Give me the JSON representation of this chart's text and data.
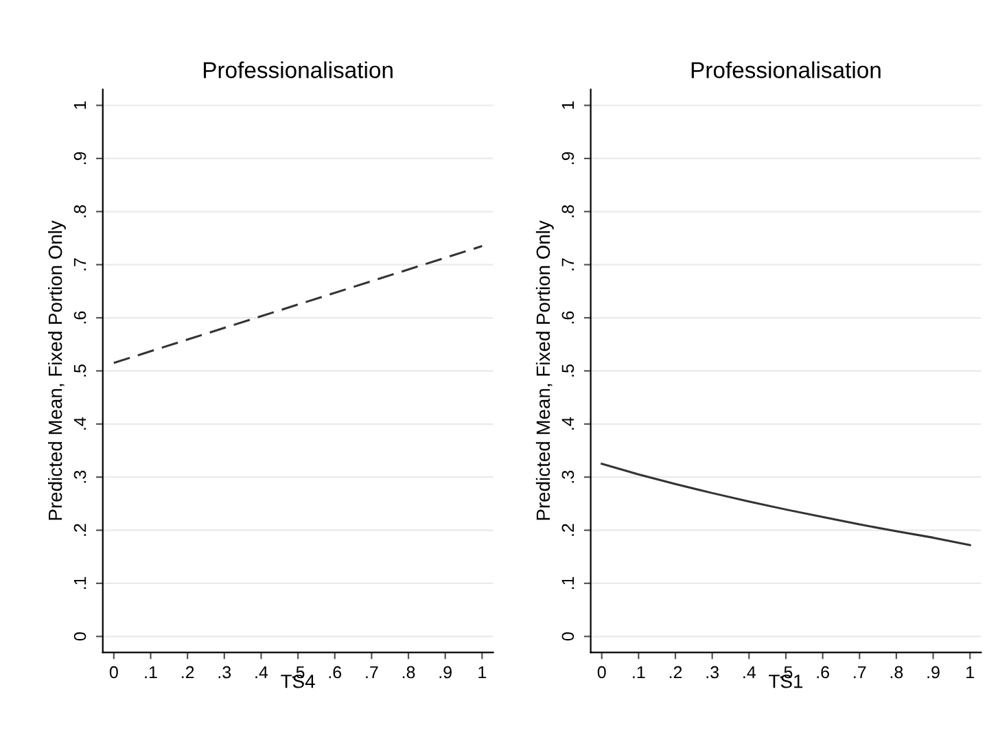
{
  "chart_data": [
    {
      "type": "line",
      "title": "Professionalisation",
      "xlabel": "TS4",
      "ylabel": "Predicted Mean, Fixed Portion Only",
      "x": [
        0,
        0.5,
        1
      ],
      "series": [
        {
          "color": "#333333",
          "values": [
            0.515,
            0.625,
            0.735
          ],
          "line_style": "dashed"
        }
      ],
      "xlim": [
        -0.03,
        1.03
      ],
      "ylim": [
        -0.03,
        1.03
      ],
      "xticks": [
        0,
        {
          "value": 0.1,
          "label": ".1"
        },
        {
          "value": 0.2,
          "label": ".2"
        },
        {
          "value": 0.3,
          "label": ".3"
        },
        {
          "value": 0.4,
          "label": ".4"
        },
        {
          "value": 0.5,
          "label": ".5"
        },
        {
          "value": 0.6,
          "label": ".6"
        },
        {
          "value": 0.7,
          "label": ".7"
        },
        {
          "value": 0.8,
          "label": ".8"
        },
        {
          "value": 0.9,
          "label": ".9"
        },
        1
      ],
      "yticks": [
        0,
        {
          "value": 0.1,
          "label": ".1"
        },
        {
          "value": 0.2,
          "label": ".2"
        },
        {
          "value": 0.3,
          "label": ".3"
        },
        {
          "value": 0.4,
          "label": ".4"
        },
        {
          "value": 0.5,
          "label": ".5"
        },
        {
          "value": 0.6,
          "label": ".6"
        },
        {
          "value": 0.7,
          "label": ".7"
        },
        {
          "value": 0.8,
          "label": ".8"
        },
        {
          "value": 0.9,
          "label": ".9"
        },
        1
      ],
      "grid": "y"
    },
    {
      "type": "line",
      "title": "Professionalisation",
      "xlabel": "TS1",
      "ylabel": "Predicted Mean, Fixed Portion Only",
      "x": [
        0,
        0.1,
        0.2,
        0.3,
        0.4,
        0.5,
        0.6,
        0.7,
        0.8,
        0.9,
        1
      ],
      "series": [
        {
          "color": "#333333",
          "values": [
            0.325,
            0.305,
            0.287,
            0.27,
            0.254,
            0.239,
            0.225,
            0.211,
            0.198,
            0.186,
            0.172
          ],
          "line_style": "solid"
        }
      ],
      "xlim": [
        -0.03,
        1.03
      ],
      "ylim": [
        -0.03,
        1.03
      ],
      "xticks": [
        0,
        {
          "value": 0.1,
          "label": ".1"
        },
        {
          "value": 0.2,
          "label": ".2"
        },
        {
          "value": 0.3,
          "label": ".3"
        },
        {
          "value": 0.4,
          "label": ".4"
        },
        {
          "value": 0.5,
          "label": ".5"
        },
        {
          "value": 0.6,
          "label": ".6"
        },
        {
          "value": 0.7,
          "label": ".7"
        },
        {
          "value": 0.8,
          "label": ".8"
        },
        {
          "value": 0.9,
          "label": ".9"
        },
        1
      ],
      "yticks": [
        0,
        {
          "value": 0.1,
          "label": ".1"
        },
        {
          "value": 0.2,
          "label": ".2"
        },
        {
          "value": 0.3,
          "label": ".3"
        },
        {
          "value": 0.4,
          "label": ".4"
        },
        {
          "value": 0.5,
          "label": ".5"
        },
        {
          "value": 0.6,
          "label": ".6"
        },
        {
          "value": 0.7,
          "label": ".7"
        },
        {
          "value": 0.8,
          "label": ".8"
        },
        {
          "value": 0.9,
          "label": ".9"
        },
        1
      ],
      "grid": "y"
    }
  ]
}
